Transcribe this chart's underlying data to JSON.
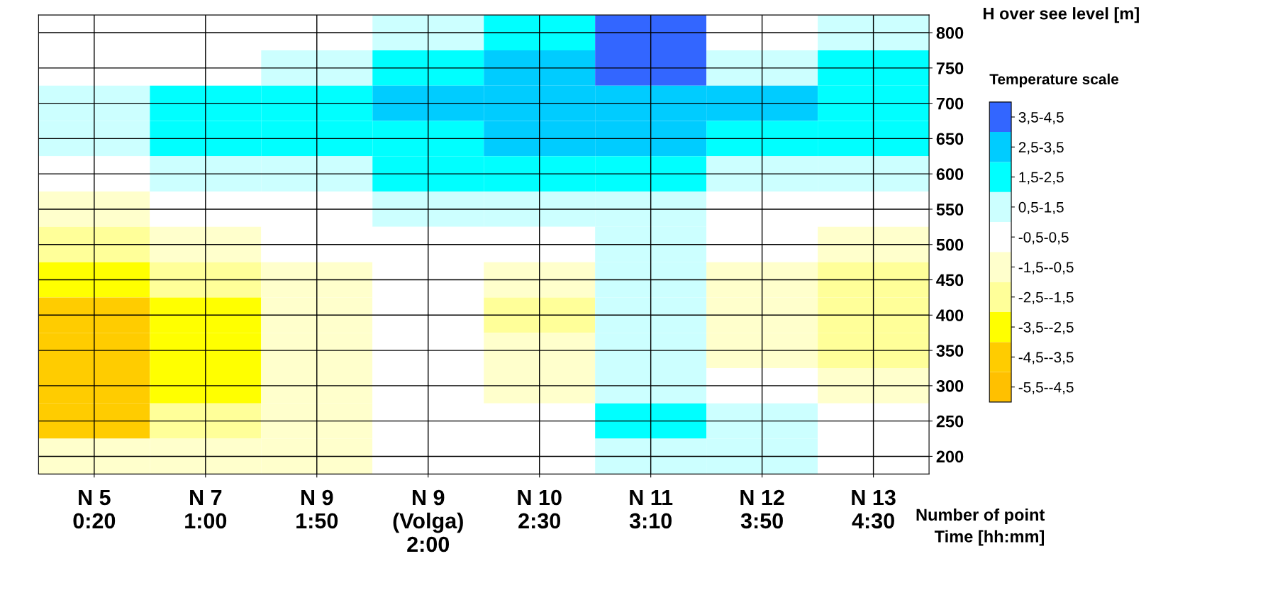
{
  "chart_data": {
    "type": "heatmap",
    "categories": [
      "N 5\n0:20",
      "N 7\n1:00",
      "N 9\n1:50",
      "N 9\n(Volga)\n2:00",
      "N 10\n2:30",
      "N 11\n3:10",
      "N 12\n3:50",
      "N 13\n4:30"
    ],
    "y_categories": [
      "800",
      "750",
      "700",
      "650",
      "600",
      "550",
      "500",
      "450",
      "400",
      "350",
      "300",
      "250",
      "200"
    ],
    "cells": [
      [
        0,
        0,
        0,
        0.6,
        1.5,
        4,
        0.3,
        1.2
      ],
      [
        0.4,
        0.3,
        0.6,
        2,
        2.5,
        3.8,
        0.6,
        2.3
      ],
      [
        1,
        1.6,
        2,
        2.8,
        3,
        3.4,
        2.5,
        2.4
      ],
      [
        0.5,
        1.5,
        1.7,
        2.4,
        2.6,
        3,
        1.8,
        1.6
      ],
      [
        0,
        1,
        1.4,
        1.5,
        1.6,
        2.2,
        1.2,
        1.4
      ],
      [
        -0.8,
        0,
        0.3,
        0.6,
        0.7,
        1.4,
        0.4,
        0.4
      ],
      [
        -2.5,
        -1.4,
        -0.5,
        0,
        -0.5,
        0.8,
        -0.3,
        -1.5
      ],
      [
        -3.5,
        -2.2,
        -1.2,
        -0.3,
        -1.2,
        0.5,
        -0.6,
        -1.7
      ],
      [
        -4,
        -2.6,
        -1.3,
        -0.3,
        -1.6,
        0.8,
        -0.8,
        -1.8
      ],
      [
        -4.2,
        -3,
        -1.3,
        0,
        -1.2,
        1,
        -0.6,
        -1.7
      ],
      [
        -4,
        -2.6,
        -1.3,
        0,
        -0.9,
        1.2,
        0.3,
        -1.5
      ],
      [
        -3.8,
        -2.4,
        -1.2,
        0,
        -0.5,
        1.6,
        1.4,
        -0.5
      ],
      [
        -0.6,
        -1.5,
        -0.6,
        0,
        0,
        0.6,
        0.6,
        0.2
      ]
    ],
    "colors": [
      "#ffc000",
      "#ffcc00",
      "#ffff00",
      "#ffff99",
      "#ffffcc",
      "#ffffff",
      "#ccffff",
      "#00ffff",
      "#00ccff",
      "#3366ff"
    ],
    "clim": [
      -5.5,
      4.5
    ],
    "cticks": [
      {
        "value": -5,
        "label": "-5,5--4,5"
      },
      {
        "value": -4,
        "label": "-4,5--3,5"
      },
      {
        "value": -3,
        "label": "-3,5--2,5"
      },
      {
        "value": -2,
        "label": "-2,5--1,5"
      },
      {
        "value": -1,
        "label": "-1,5--0,5"
      },
      {
        "value": 0,
        "label": "-0,5-0,5"
      },
      {
        "value": 1,
        "label": "0,5-1,5"
      },
      {
        "value": 2,
        "label": "1,5-2,5"
      },
      {
        "value": 3,
        "label": "2,5-3,5"
      },
      {
        "value": 4,
        "label": "3,5-4,5"
      }
    ],
    "clabel": "Temperature scale",
    "xlabel": "Number of point\nTime [hh:mm]",
    "ylabel": "H over see level [m]",
    "grid": true
  }
}
